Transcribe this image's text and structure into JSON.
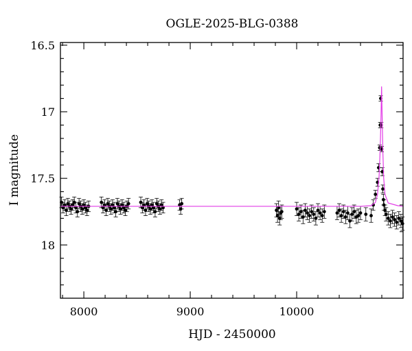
{
  "chart_data": {
    "type": "scatter",
    "title": "OGLE-2025-BLG-0388",
    "xlabel": "HJD - 2450000",
    "ylabel": "I magnitude",
    "xlim": [
      7780,
      11000
    ],
    "ylim": [
      18.4,
      16.48
    ],
    "y_inverted": true,
    "grid": false,
    "xticks": [
      8000,
      9000,
      10000
    ],
    "xtick_labels": [
      "8000",
      "9000",
      "10000"
    ],
    "yticks": [
      16.5,
      17,
      17.5,
      18
    ],
    "ytick_labels": [
      "16.5",
      "17",
      "17.5",
      "18"
    ],
    "colors": {
      "points": "#000000",
      "model": "#e23be6"
    },
    "series": [
      {
        "kind": "observations",
        "x": [
          7790,
          7805,
          7820,
          7835,
          7850,
          7865,
          7880,
          7895,
          7910,
          7925,
          7940,
          7955,
          7970,
          7985,
          8000,
          8015,
          8030,
          8045,
          8165,
          8180,
          8195,
          8210,
          8225,
          8240,
          8255,
          8270,
          8285,
          8300,
          8315,
          8330,
          8345,
          8360,
          8375,
          8390,
          8405,
          8420,
          8535,
          8550,
          8565,
          8580,
          8595,
          8610,
          8625,
          8640,
          8655,
          8670,
          8685,
          8700,
          8715,
          8730,
          8745,
          8900,
          8910,
          8920,
          9810,
          9820,
          9830,
          9840,
          9850,
          9860,
          10000,
          10020,
          10040,
          10060,
          10080,
          10100,
          10120,
          10140,
          10160,
          10180,
          10200,
          10220,
          10240,
          10260,
          10380,
          10400,
          10420,
          10440,
          10460,
          10480,
          10500,
          10520,
          10540,
          10560,
          10580,
          10600,
          10650,
          10700,
          10720,
          10740,
          10760,
          10770,
          10780,
          10785,
          10790,
          10795,
          10800,
          10805,
          10810,
          10815,
          10820,
          10830,
          10840,
          10860,
          10880,
          10900,
          10920,
          10940,
          10960,
          10980,
          10995
        ],
        "y": [
          17.68,
          17.72,
          17.7,
          17.74,
          17.69,
          17.71,
          17.73,
          17.7,
          17.68,
          17.72,
          17.75,
          17.69,
          17.71,
          17.73,
          17.7,
          17.72,
          17.74,
          17.71,
          17.68,
          17.72,
          17.7,
          17.74,
          17.69,
          17.71,
          17.73,
          17.7,
          17.72,
          17.75,
          17.69,
          17.71,
          17.73,
          17.7,
          17.72,
          17.74,
          17.71,
          17.69,
          17.68,
          17.72,
          17.7,
          17.74,
          17.69,
          17.71,
          17.73,
          17.7,
          17.72,
          17.75,
          17.69,
          17.71,
          17.73,
          17.7,
          17.72,
          17.7,
          17.73,
          17.69,
          17.74,
          17.78,
          17.72,
          17.8,
          17.76,
          17.75,
          17.73,
          17.77,
          17.75,
          17.79,
          17.74,
          17.76,
          17.78,
          17.75,
          17.77,
          17.8,
          17.74,
          17.76,
          17.78,
          17.75,
          17.76,
          17.74,
          17.78,
          17.75,
          17.79,
          17.76,
          17.82,
          17.77,
          17.75,
          17.79,
          17.78,
          17.76,
          17.77,
          17.78,
          17.7,
          17.62,
          17.53,
          17.42,
          17.27,
          17.1,
          16.9,
          17.1,
          17.28,
          17.45,
          17.58,
          17.66,
          17.7,
          17.74,
          17.77,
          17.8,
          17.82,
          17.79,
          17.81,
          17.83,
          17.8,
          17.82,
          17.84
        ],
        "yerr": [
          0.04,
          0.04,
          0.04,
          0.04,
          0.04,
          0.04,
          0.04,
          0.04,
          0.04,
          0.04,
          0.04,
          0.04,
          0.04,
          0.04,
          0.04,
          0.04,
          0.04,
          0.04,
          0.04,
          0.04,
          0.04,
          0.04,
          0.04,
          0.04,
          0.04,
          0.04,
          0.04,
          0.04,
          0.04,
          0.04,
          0.04,
          0.04,
          0.04,
          0.04,
          0.04,
          0.04,
          0.04,
          0.04,
          0.04,
          0.04,
          0.04,
          0.04,
          0.04,
          0.04,
          0.04,
          0.04,
          0.04,
          0.04,
          0.04,
          0.04,
          0.04,
          0.04,
          0.04,
          0.04,
          0.05,
          0.05,
          0.05,
          0.05,
          0.05,
          0.05,
          0.05,
          0.05,
          0.05,
          0.05,
          0.05,
          0.05,
          0.05,
          0.05,
          0.05,
          0.05,
          0.05,
          0.05,
          0.05,
          0.05,
          0.05,
          0.05,
          0.05,
          0.05,
          0.05,
          0.05,
          0.05,
          0.05,
          0.05,
          0.05,
          0.05,
          0.05,
          0.05,
          0.05,
          0.04,
          0.03,
          0.03,
          0.03,
          0.02,
          0.02,
          0.02,
          0.02,
          0.02,
          0.03,
          0.03,
          0.04,
          0.04,
          0.04,
          0.05,
          0.05,
          0.05,
          0.05,
          0.05,
          0.05,
          0.05,
          0.05,
          0.05
        ]
      },
      {
        "kind": "model",
        "x": [
          7780,
          10600,
          10700,
          10740,
          10760,
          10775,
          10785,
          10793,
          10798,
          10803,
          10810,
          10818,
          10830,
          10860,
          10950,
          11000
        ],
        "y": [
          17.71,
          17.71,
          17.705,
          17.68,
          17.62,
          17.48,
          17.28,
          17.02,
          16.81,
          17.02,
          17.3,
          17.5,
          17.62,
          17.685,
          17.705,
          17.71
        ]
      }
    ]
  }
}
